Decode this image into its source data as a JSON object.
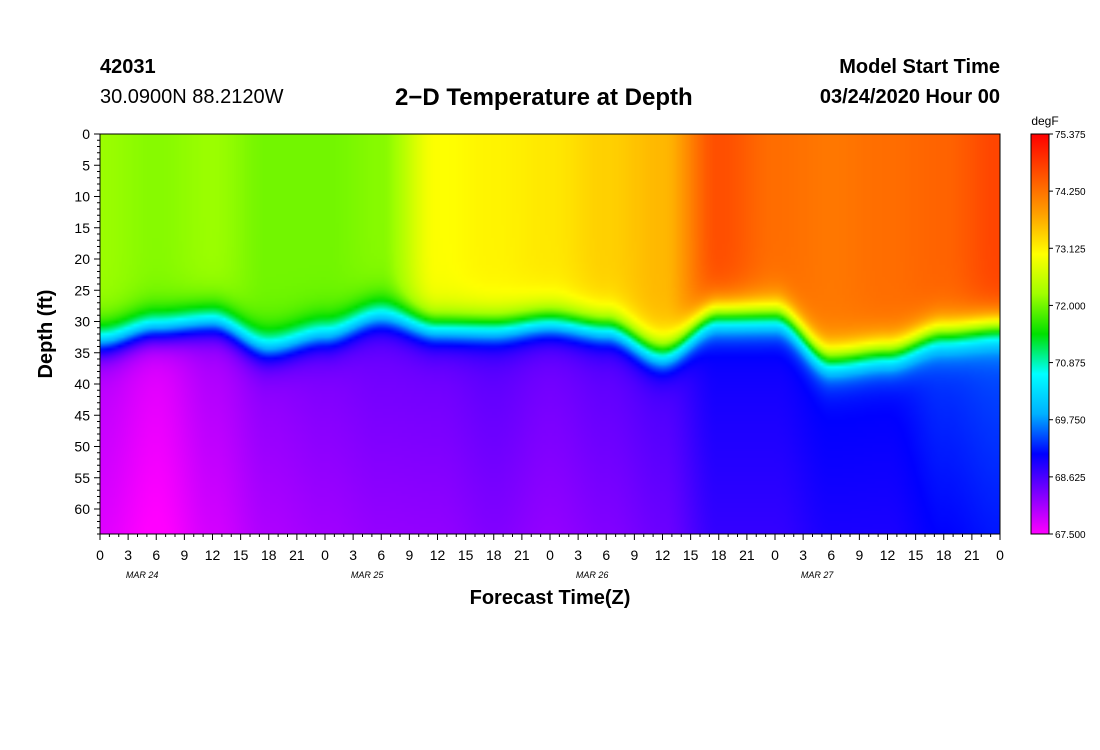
{
  "header": {
    "station": "42031",
    "coords": "30.0900N 88.2120W",
    "title": "2−D Temperature at Depth",
    "model_start_label": "Model Start Time",
    "model_start_value": "03/24/2020 Hour 00"
  },
  "chart_data": {
    "type": "heatmap",
    "title": "2−D Temperature at Depth",
    "xlabel": "Forecast Time(Z)",
    "ylabel": "Depth (ft)",
    "x_ticks": [
      "0",
      "3",
      "6",
      "9",
      "12",
      "15",
      "18",
      "21",
      "0",
      "3",
      "6",
      "9",
      "12",
      "15",
      "18",
      "21",
      "0",
      "3",
      "6",
      "9",
      "12",
      "15",
      "18",
      "21",
      "0",
      "3",
      "6",
      "9",
      "12",
      "15",
      "18",
      "21",
      "0"
    ],
    "day_labels": [
      "MAR 24",
      "MAR 25",
      "MAR 26",
      "MAR 27"
    ],
    "xlim_hours": [
      0,
      96
    ],
    "y_ticks": [
      0,
      5,
      10,
      15,
      20,
      25,
      30,
      35,
      40,
      45,
      50,
      55,
      60
    ],
    "ylim": [
      0,
      64
    ],
    "y_inverted": true,
    "colorbar": {
      "unit": "degF",
      "ticks": [
        "75.375",
        "74.250",
        "73.125",
        "72.000",
        "70.875",
        "69.750",
        "68.625",
        "67.500"
      ],
      "min": 67.5,
      "max": 75.375,
      "colors": [
        "#ff00ff",
        "#8000ff",
        "#0000ff",
        "#00b0ff",
        "#00ffff",
        "#00e000",
        "#a0ff00",
        "#ffff00",
        "#ffa000",
        "#ff5000",
        "#ff0000"
      ]
    },
    "thermocline_hours": [
      0,
      6,
      12,
      18,
      24,
      30,
      36,
      42,
      48,
      54,
      60,
      66,
      72,
      78,
      84,
      90,
      96
    ],
    "thermocline_depth_ft": [
      33,
      31,
      30,
      34,
      32,
      29,
      31,
      31,
      30,
      31,
      35,
      29,
      29,
      36,
      35,
      32,
      31
    ],
    "surface_temp_degF": [
      72.2,
      72.1,
      72.2,
      72.0,
      72.0,
      72.1,
      73.0,
      73.1,
      73.2,
      73.4,
      73.6,
      74.6,
      74.3,
      74.2,
      74.3,
      74.4,
      74.7
    ],
    "deep_temp_degF": [
      67.9,
      67.7,
      68.0,
      68.2,
      68.3,
      68.4,
      68.4,
      68.5,
      68.4,
      68.5,
      68.6,
      69.0,
      69.0,
      69.1,
      69.1,
      69.3,
      69.4
    ]
  }
}
